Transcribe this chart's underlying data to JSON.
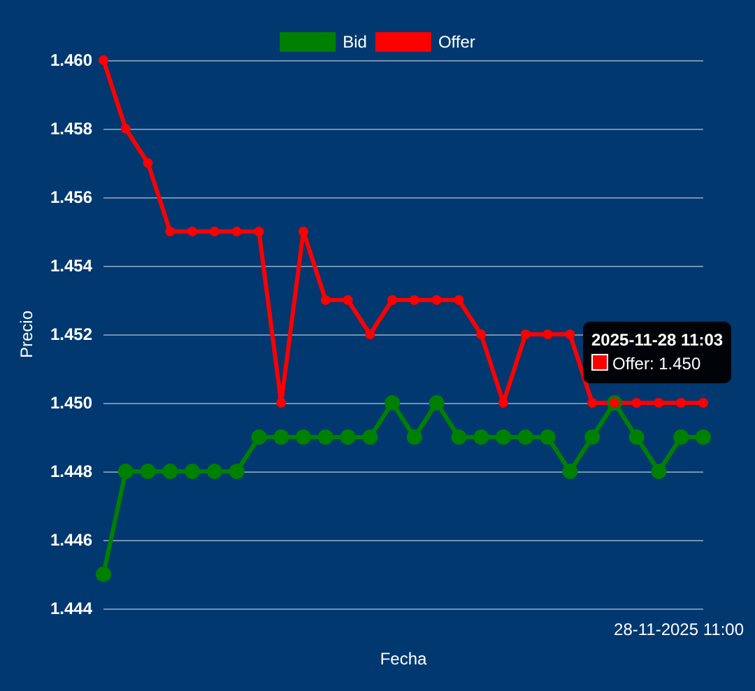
{
  "chart_data": {
    "type": "line",
    "xlabel": "Fecha",
    "ylabel": "Precio",
    "categories": [
      null,
      null,
      null,
      null,
      null,
      null,
      null,
      null,
      null,
      null,
      null,
      null,
      null,
      null,
      null,
      null,
      null,
      null,
      null,
      null,
      null,
      null,
      null,
      null,
      null,
      null,
      null,
      null
    ],
    "series": [
      {
        "name": "Bid",
        "color": "#008000",
        "values": [
          1.445,
          1.448,
          1.448,
          1.448,
          1.448,
          1.448,
          1.448,
          1.449,
          1.449,
          1.449,
          1.449,
          1.449,
          1.449,
          1.45,
          1.449,
          1.45,
          1.449,
          1.449,
          1.449,
          1.449,
          1.449,
          1.448,
          1.449,
          1.45,
          1.449,
          1.448,
          1.449,
          1.449
        ]
      },
      {
        "name": "Offer",
        "color": "#ff0000",
        "values": [
          1.46,
          1.458,
          1.457,
          1.455,
          1.455,
          1.455,
          1.455,
          1.455,
          1.45,
          1.455,
          1.453,
          1.453,
          1.452,
          1.453,
          1.453,
          1.453,
          1.453,
          1.452,
          1.45,
          1.452,
          1.452,
          1.452,
          1.45,
          1.45,
          1.45,
          1.45,
          1.45,
          1.45
        ]
      }
    ],
    "ylim": [
      1.444,
      1.46
    ],
    "yticks": [
      {
        "value": 1.444,
        "label": "1.444"
      },
      {
        "value": 1.446,
        "label": "1.446"
      },
      {
        "value": 1.448,
        "label": "1.448"
      },
      {
        "value": 1.45,
        "label": "1.450"
      },
      {
        "value": 1.452,
        "label": "1.452"
      },
      {
        "value": 1.454,
        "label": "1.454"
      },
      {
        "value": 1.456,
        "label": "1.456"
      },
      {
        "value": 1.458,
        "label": "1.458"
      },
      {
        "value": 1.46,
        "label": "1.460"
      }
    ],
    "annotations": [
      "28-11-2025 11:00",
      "2025-11-28 11:03",
      "Offer: 1.450"
    ],
    "grid": "y",
    "legend": "top",
    "marker": "circle",
    "line_style": "solid"
  }
}
